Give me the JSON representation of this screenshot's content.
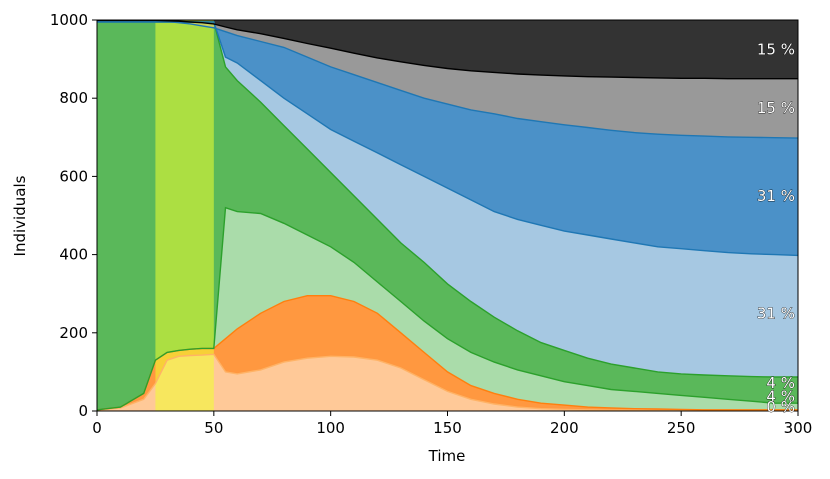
{
  "chart_data": {
    "type": "area",
    "xlabel": "Time",
    "ylabel": "Individuals",
    "xlim": [
      0,
      300
    ],
    "ylim": [
      0,
      1000
    ],
    "xticks": [
      0,
      50,
      100,
      150,
      200,
      250,
      300
    ],
    "yticks": [
      0,
      200,
      400,
      600,
      800,
      1000
    ],
    "x": [
      0,
      10,
      20,
      25,
      30,
      35,
      40,
      45,
      50,
      55,
      60,
      70,
      80,
      90,
      100,
      110,
      120,
      130,
      140,
      150,
      160,
      170,
      180,
      190,
      200,
      210,
      220,
      230,
      240,
      250,
      260,
      270,
      280,
      290,
      300
    ],
    "boundaries": [
      {
        "name": "orange-light-top",
        "color": "#ffb366",
        "values": [
          2,
          8,
          30,
          70,
          130,
          140,
          142,
          143,
          145,
          100,
          95,
          105,
          125,
          135,
          140,
          138,
          130,
          110,
          80,
          50,
          30,
          18,
          10,
          6,
          4,
          3,
          2,
          2,
          1,
          1,
          1,
          1,
          1,
          1,
          1
        ]
      },
      {
        "name": "orange-dark-top",
        "color": "#ff7f0e",
        "values": [
          3,
          10,
          45,
          130,
          150,
          155,
          158,
          160,
          160,
          185,
          210,
          250,
          280,
          295,
          295,
          280,
          250,
          200,
          150,
          100,
          65,
          45,
          30,
          20,
          15,
          10,
          8,
          6,
          5,
          4,
          3,
          3,
          3,
          3,
          3
        ]
      },
      {
        "name": "green-light-top",
        "color": "#2ca02c",
        "values": [
          3,
          10,
          45,
          130,
          150,
          155,
          158,
          160,
          160,
          520,
          510,
          505,
          480,
          450,
          420,
          380,
          330,
          280,
          230,
          185,
          150,
          125,
          105,
          90,
          75,
          65,
          55,
          50,
          45,
          40,
          35,
          30,
          25,
          20,
          20
        ]
      },
      {
        "name": "green-dark-top",
        "color": "#2ca02c",
        "values": [
          995,
          995,
          995,
          995,
          995,
          995,
          995,
          995,
          995,
          880,
          845,
          790,
          730,
          670,
          610,
          550,
          490,
          430,
          380,
          325,
          280,
          240,
          205,
          175,
          155,
          135,
          120,
          110,
          100,
          95,
          92,
          90,
          88,
          87,
          87
        ]
      },
      {
        "name": "blue-light-top",
        "color": "#1f77b4",
        "values": [
          995,
          995,
          995,
          995,
          995,
          995,
          995,
          995,
          995,
          905,
          890,
          845,
          800,
          760,
          720,
          690,
          660,
          630,
          600,
          570,
          540,
          510,
          490,
          475,
          460,
          450,
          440,
          430,
          420,
          415,
          410,
          405,
          402,
          400,
          398
        ]
      },
      {
        "name": "blue-dark-top",
        "color": "#1f77b4",
        "values": [
          998,
          998,
          998,
          998,
          996,
          993,
          990,
          985,
          980,
          970,
          960,
          945,
          930,
          905,
          880,
          860,
          840,
          820,
          800,
          785,
          770,
          760,
          748,
          740,
          732,
          725,
          718,
          712,
          708,
          705,
          703,
          701,
          700,
          699,
          698
        ]
      },
      {
        "name": "grey-top",
        "color": "#000000",
        "values": [
          999,
          999,
          999,
          999,
          998,
          997,
          995,
          993,
          990,
          982,
          975,
          965,
          953,
          940,
          928,
          915,
          903,
          893,
          884,
          876,
          870,
          866,
          862,
          859,
          857,
          855,
          854,
          853,
          852,
          851,
          851,
          850,
          850,
          850,
          850
        ]
      }
    ],
    "layers": [
      {
        "name": "orange-light",
        "color": "#ffc998"
      },
      {
        "name": "orange-dark",
        "color": "#ff9840"
      },
      {
        "name": "green-light",
        "color": "#aadcaa"
      },
      {
        "name": "green-dark",
        "color": "#5ab85a"
      },
      {
        "name": "blue-light",
        "color": "#a6c8e2"
      },
      {
        "name": "blue-dark",
        "color": "#4b91c8"
      },
      {
        "name": "grey",
        "color": "#999999"
      },
      {
        "name": "black",
        "color": "#333333"
      }
    ],
    "highlight": {
      "x_start": 25,
      "x_end": 50,
      "color": "#f0ff30"
    },
    "percent_labels": [
      {
        "text": "15 %",
        "y": 925
      },
      {
        "text": "15 %",
        "y": 775
      },
      {
        "text": "31 %",
        "y": 550
      },
      {
        "text": "31 %",
        "y": 250
      },
      {
        "text": "4 %",
        "y": 72
      },
      {
        "text": "4 %",
        "y": 37
      },
      {
        "text": "0 %",
        "y": 10
      }
    ]
  }
}
